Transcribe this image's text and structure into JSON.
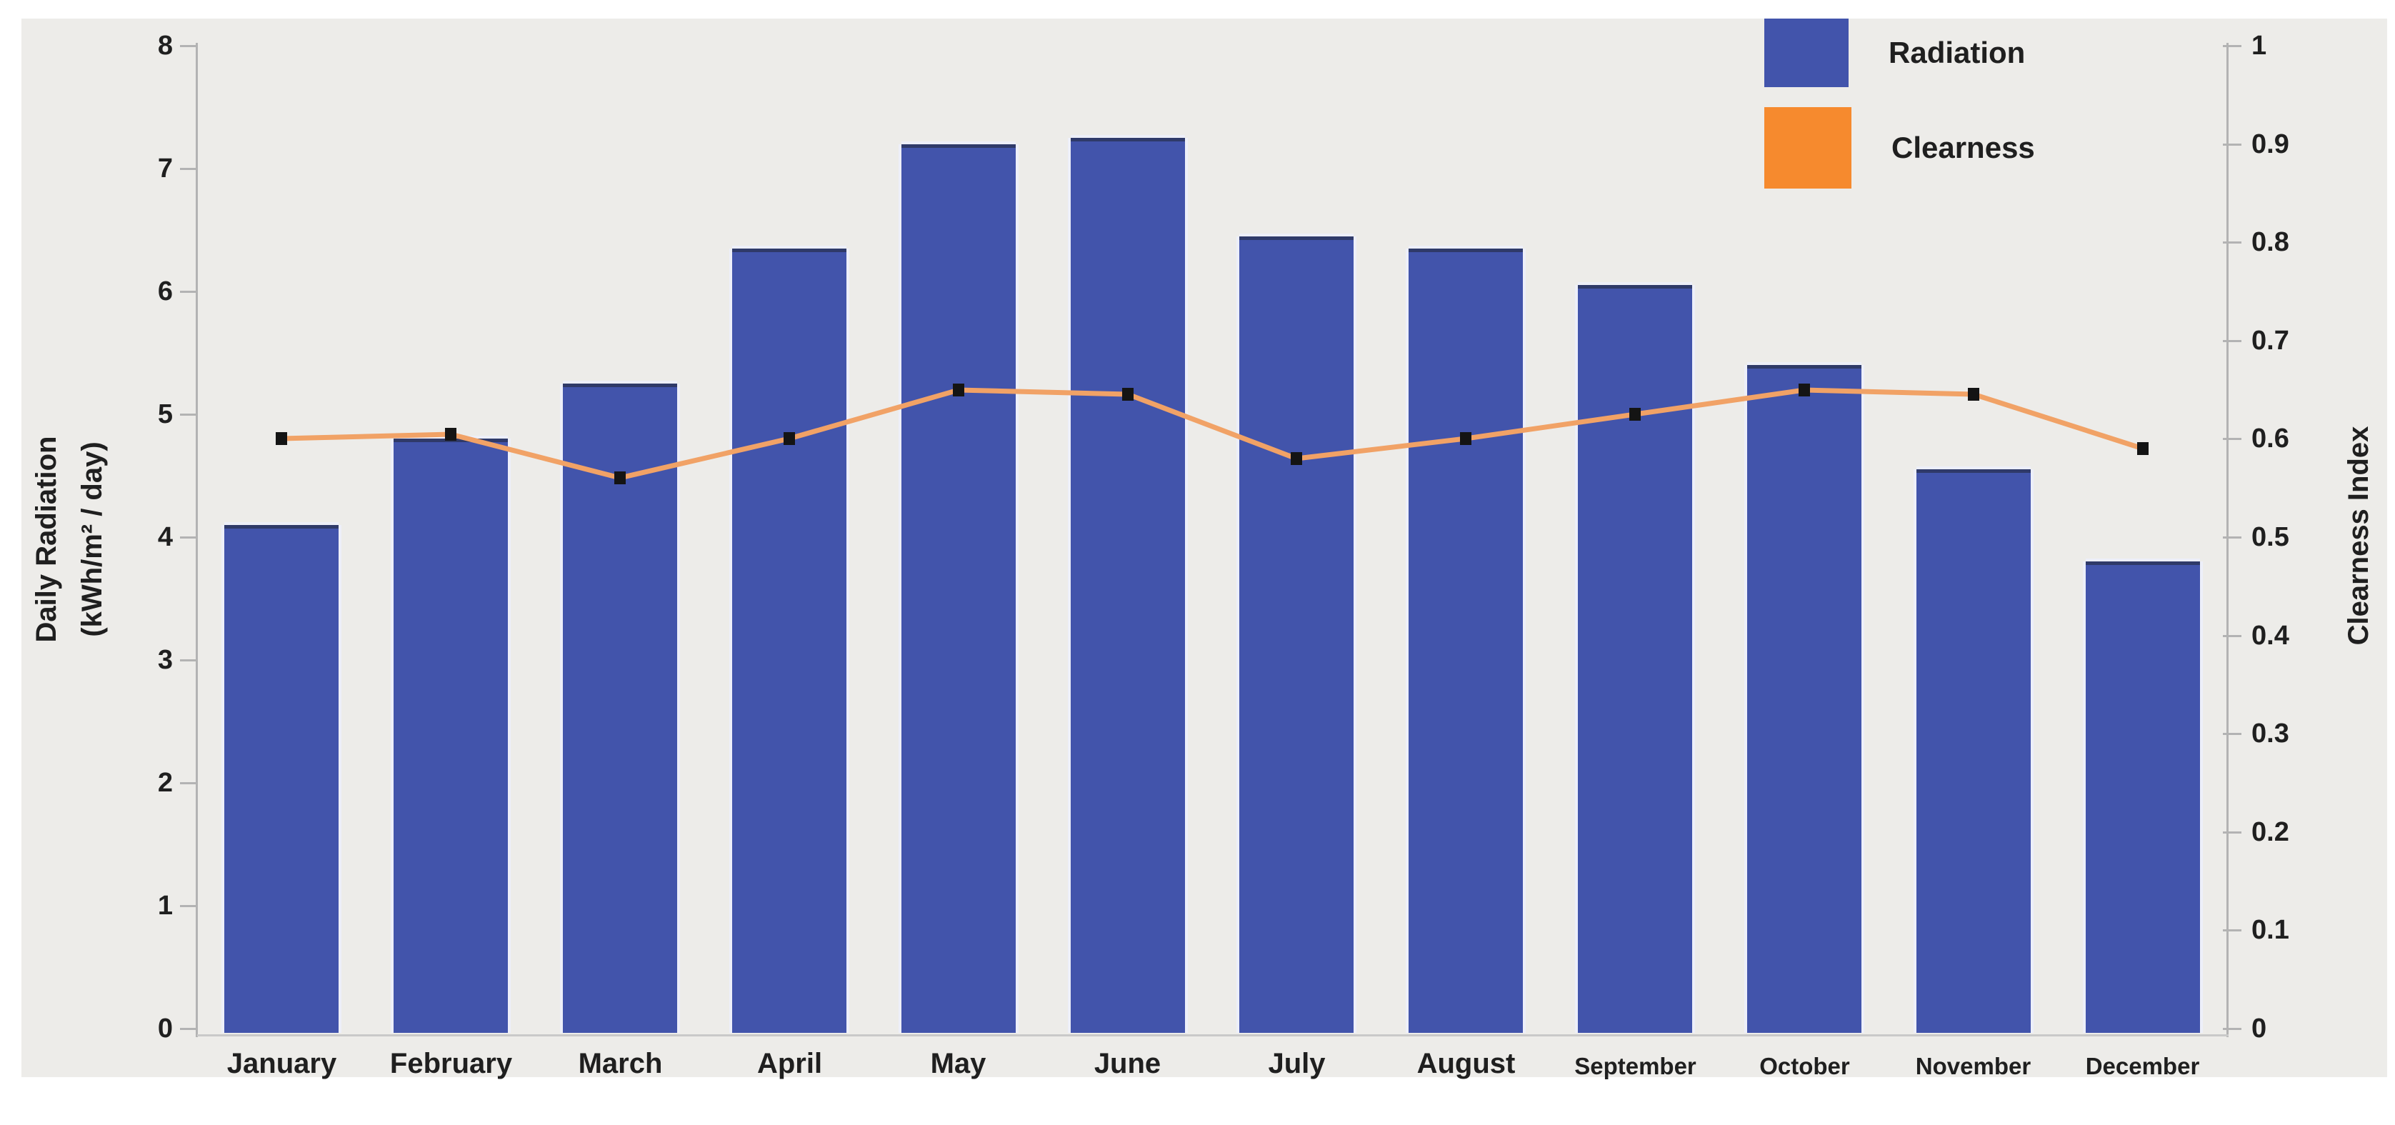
{
  "chart_data": {
    "type": "bar",
    "combo": "bar+line",
    "title": "",
    "categories": [
      "January",
      "February",
      "March",
      "April",
      "May",
      "June",
      "July",
      "August",
      "September",
      "October",
      "November",
      "December"
    ],
    "series": [
      {
        "name": "Radiation",
        "type": "bar",
        "axis": "left",
        "color": "#4254ab",
        "values": [
          4.1,
          4.8,
          5.25,
          6.35,
          7.2,
          7.25,
          6.45,
          6.35,
          6.05,
          5.4,
          4.55,
          3.8
        ]
      },
      {
        "name": "Clearness",
        "type": "line",
        "axis": "right",
        "color": "#f1a266",
        "marker_color": "#141414",
        "values": [
          0.6,
          0.605,
          0.56,
          0.6,
          0.65,
          0.645,
          0.58,
          0.6,
          0.625,
          0.65,
          0.645,
          0.59
        ]
      }
    ],
    "left_axis": {
      "title": "Daily Radiation (kWh/m² / day)",
      "title_line1": "Daily Radiation",
      "title_line2": "(kWh/m² / day)",
      "min": 0,
      "max": 8,
      "tick_labels": [
        "0",
        "1",
        "2",
        "3",
        "4",
        "5",
        "6",
        "7",
        "8"
      ]
    },
    "right_axis": {
      "title": "Clearness Index",
      "min": 0,
      "max": 1,
      "tick_labels": [
        "0",
        "0.1",
        "0.2",
        "0.3",
        "0.4",
        "0.5",
        "0.6",
        "0.7",
        "0.8",
        "0.9",
        "1"
      ]
    },
    "legend": {
      "position": "top-right",
      "entries": [
        {
          "label": "Radiation",
          "color": "#4254ab"
        },
        {
          "label": "Clearness",
          "color": "#f68a2e"
        }
      ]
    },
    "grid": false,
    "background_color": "#edece9"
  }
}
